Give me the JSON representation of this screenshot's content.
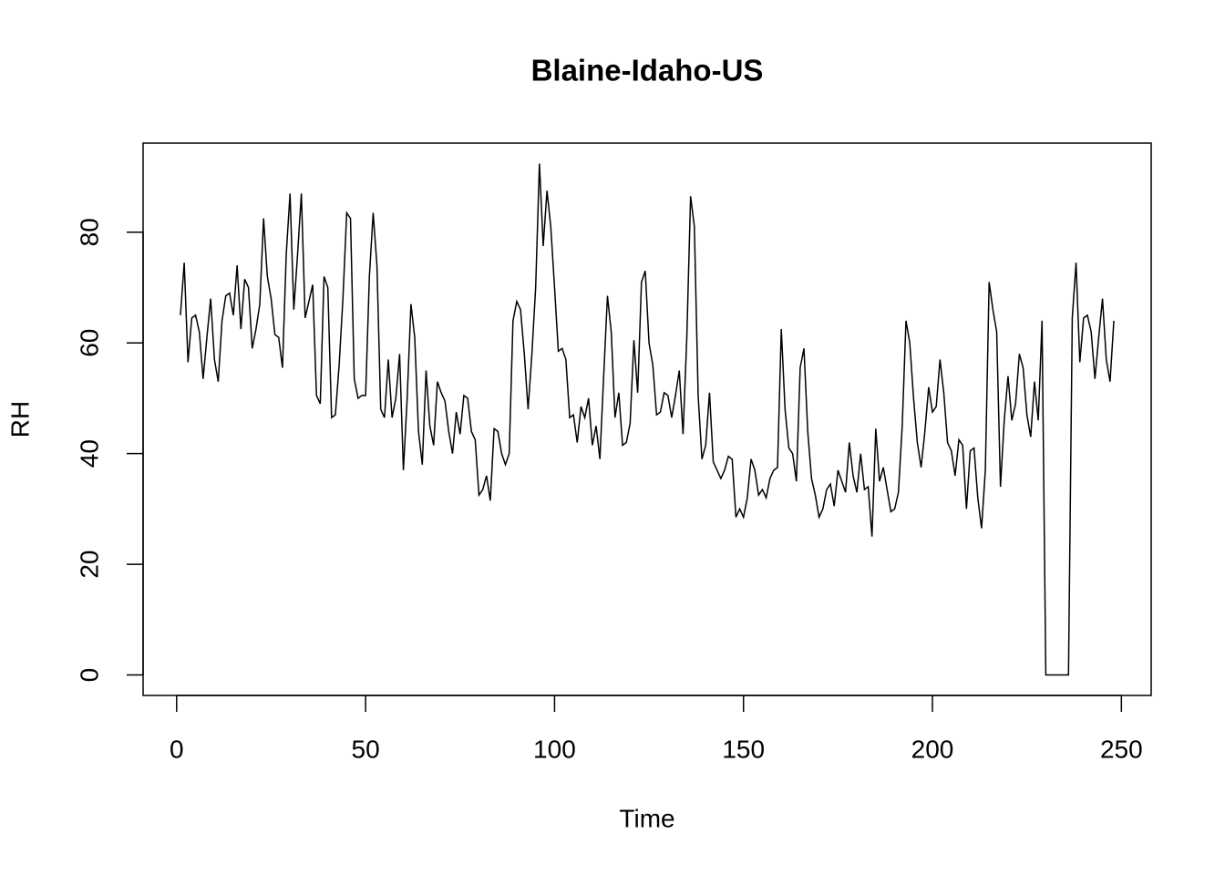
{
  "chart_data": {
    "type": "line",
    "title": "Blaine-Idaho-US",
    "x_label": "Time",
    "y_label": "RH",
    "x": [
      1,
      2,
      3,
      4,
      5,
      6,
      7,
      8,
      9,
      10,
      11,
      12,
      13,
      14,
      15,
      16,
      17,
      18,
      19,
      20,
      21,
      22,
      23,
      24,
      25,
      26,
      27,
      28,
      29,
      30,
      31,
      32,
      33,
      34,
      35,
      36,
      37,
      38,
      39,
      40,
      41,
      42,
      43,
      44,
      45,
      46,
      47,
      48,
      49,
      50,
      51,
      52,
      53,
      54,
      55,
      56,
      57,
      58,
      59,
      60,
      61,
      62,
      63,
      64,
      65,
      66,
      67,
      68,
      69,
      70,
      71,
      72,
      73,
      74,
      75,
      76,
      77,
      78,
      79,
      80,
      81,
      82,
      83,
      84,
      85,
      86,
      87,
      88,
      89,
      90,
      91,
      92,
      93,
      94,
      95,
      96,
      97,
      98,
      99,
      100,
      101,
      102,
      103,
      104,
      105,
      106,
      107,
      108,
      109,
      110,
      111,
      112,
      113,
      114,
      115,
      116,
      117,
      118,
      119,
      120,
      121,
      122,
      123,
      124,
      125,
      126,
      127,
      128,
      129,
      130,
      131,
      132,
      133,
      134,
      135,
      136,
      137,
      138,
      139,
      140,
      141,
      142,
      143,
      144,
      145,
      146,
      147,
      148,
      149,
      150,
      151,
      152,
      153,
      154,
      155,
      156,
      157,
      158,
      159,
      160,
      161,
      162,
      163,
      164,
      165,
      166,
      167,
      168,
      169,
      170,
      171,
      172,
      173,
      174,
      175,
      176,
      177,
      178,
      179,
      180,
      181,
      182,
      183,
      184,
      185,
      186,
      187,
      188,
      189,
      190,
      191,
      192,
      193,
      194,
      195,
      196,
      197,
      198,
      199,
      200,
      201,
      202,
      203,
      204,
      205,
      206,
      207,
      208,
      209,
      210,
      211,
      212,
      213,
      214,
      215,
      216,
      217,
      218,
      219,
      220,
      221,
      222,
      223,
      224,
      225,
      226,
      227,
      228,
      229,
      230,
      231,
      232,
      233,
      234,
      235,
      236,
      237,
      238,
      239,
      240,
      241,
      242,
      243,
      244,
      245,
      246,
      247,
      248
    ],
    "series": [
      {
        "color": "#000000",
        "values": [
          65,
          74.5,
          56.5,
          64.5,
          65,
          62,
          53.5,
          61,
          68,
          57,
          53,
          64,
          68.5,
          69,
          65,
          74,
          62.5,
          71.5,
          70,
          59,
          62.5,
          67,
          82.5,
          72,
          68,
          61.5,
          61,
          55.5,
          76,
          87,
          66,
          76,
          87,
          64.5,
          67.5,
          70.5,
          50.5,
          49,
          72,
          70,
          46.5,
          47,
          56,
          68,
          83.5,
          82.5,
          53.5,
          50,
          50.5,
          50.5,
          72,
          83.5,
          74,
          48,
          46.5,
          57,
          46.5,
          50,
          58,
          37,
          50,
          67,
          61,
          44,
          38,
          55,
          45,
          41.5,
          53,
          51,
          49.5,
          44,
          40,
          47.5,
          43.5,
          50.5,
          50,
          44,
          42.5,
          32.5,
          33.5,
          36,
          31.5,
          44.5,
          44,
          40,
          38,
          40,
          64,
          67.5,
          66,
          58,
          48,
          58,
          70,
          92.4,
          77.5,
          87.5,
          81,
          70,
          58.5,
          59,
          57,
          46.5,
          47,
          42,
          48.5,
          46.5,
          50,
          41.5,
          45,
          39,
          54,
          68.5,
          62,
          46.5,
          51,
          41.5,
          42,
          45.5,
          60.5,
          51,
          71,
          73,
          60,
          56,
          47,
          47.5,
          51,
          50.5,
          46.5,
          50.5,
          55,
          43.5,
          61,
          86.5,
          81,
          50.5,
          39,
          41.5,
          51,
          38.5,
          37,
          35.5,
          37,
          39.5,
          39,
          28.5,
          30,
          28.5,
          32,
          39,
          37,
          32.5,
          33.5,
          32,
          35.5,
          37,
          37.5,
          62.5,
          48,
          41,
          40,
          35,
          55.5,
          59,
          44,
          35.5,
          32.5,
          28.5,
          30,
          33.5,
          34.5,
          30.5,
          37,
          35,
          33,
          42,
          36,
          33,
          40,
          33.5,
          34,
          25,
          44.5,
          35,
          37.5,
          33.5,
          29.5,
          30,
          33,
          45,
          64,
          60,
          50,
          42,
          37.5,
          44,
          52,
          47.5,
          48.5,
          57,
          51,
          42,
          40.5,
          36,
          42.5,
          41.5,
          30,
          40.5,
          41,
          32,
          26.5,
          37,
          71,
          66,
          62,
          34,
          46,
          54,
          46,
          49,
          58,
          55.5,
          47,
          43,
          53,
          46,
          64,
          0,
          0,
          0,
          0,
          0,
          0,
          0,
          64.5,
          74.5,
          56.5,
          64.5,
          65,
          62,
          53.5,
          61,
          68,
          57,
          53,
          64
        ]
      }
    ],
    "xlim": [
      -8.88,
      257.88
    ],
    "xticks": [
      0,
      50,
      100,
      150,
      200,
      250
    ],
    "ylim": [
      -3.7,
      96.1
    ],
    "yticks": [
      0,
      20,
      40,
      60,
      80
    ]
  }
}
